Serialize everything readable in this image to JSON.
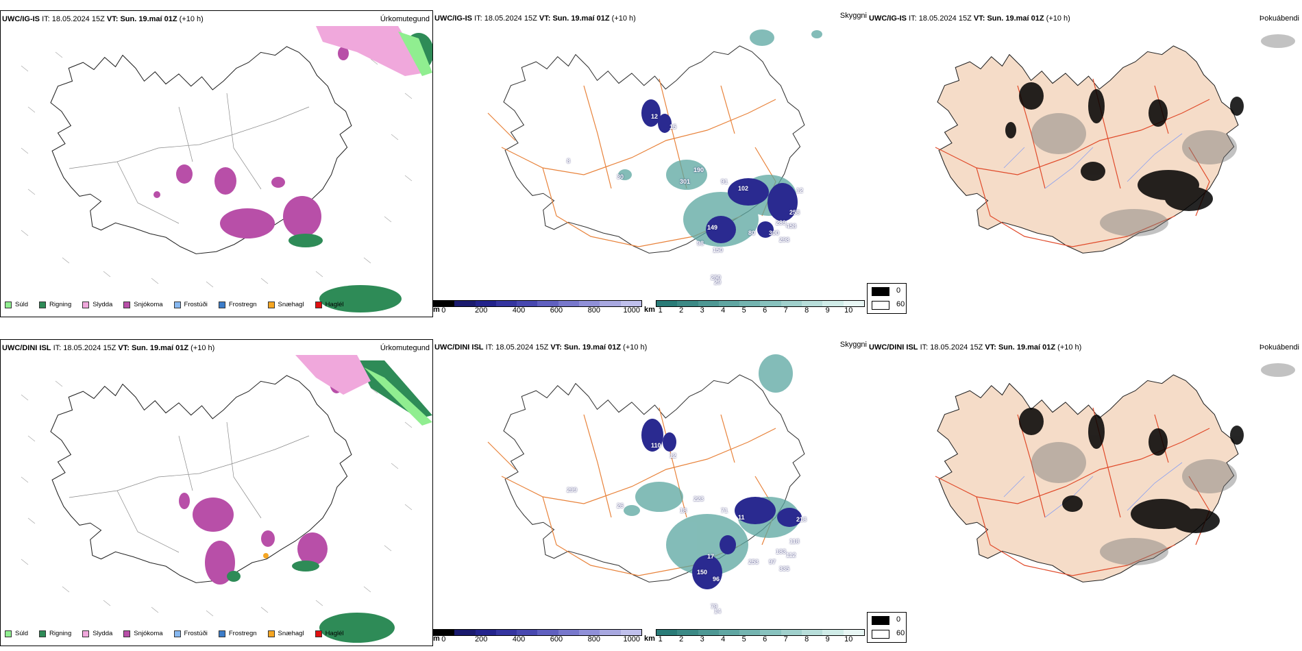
{
  "precip": {
    "title": "Úrkomutegund",
    "legend": [
      {
        "label": "Súld",
        "color": "#90ee90"
      },
      {
        "label": "Rigning",
        "color": "#2e8b57"
      },
      {
        "label": "Slydda",
        "color": "#f0a8dc"
      },
      {
        "label": "Snjókoma",
        "color": "#b84fa8"
      },
      {
        "label": "Frostúði",
        "color": "#87b8f0"
      },
      {
        "label": "Frostregn",
        "color": "#3c7cc8"
      },
      {
        "label": "Snæhagl",
        "color": "#f5a623"
      },
      {
        "label": "Haglél",
        "color": "#e01010"
      }
    ]
  },
  "visibility": {
    "title": "Skyggni",
    "unit_m": "m",
    "unit_km": "km",
    "m_ticks": [
      "0",
      "200",
      "400",
      "600",
      "800",
      "1000"
    ],
    "km_ticks": [
      "1",
      "2",
      "3",
      "4",
      "5",
      "6",
      "7",
      "8",
      "9",
      "10"
    ],
    "m_colors": [
      "#000000",
      "#1a1a6e",
      "#23238c",
      "#3535a0",
      "#4848b0",
      "#6060c0",
      "#7878cc",
      "#9090d8",
      "#a8a8e0",
      "#c0c0ec"
    ],
    "km_colors": [
      "#2a7c78",
      "#3c8a86",
      "#4e9894",
      "#60a6a2",
      "#74b4b0",
      "#88c2be",
      "#a0d0cc",
      "#b8deda",
      "#d0ece8",
      "#e8f6f4"
    ]
  },
  "fog": {
    "title": "Þokuábendi",
    "legend": [
      {
        "label": "0",
        "color": "#000000"
      },
      {
        "label": "60",
        "color": "#ffffff"
      }
    ]
  },
  "rows": [
    {
      "model": "UWC/IG-IS",
      "it_label": "IT:",
      "it_value": "18.05.2024 15Z",
      "vt_label": "VT:",
      "vt_value": "Sun. 19.maí 01Z",
      "lead": "(+10 h)",
      "vis_labels": [
        "12",
        "15",
        "8",
        "30",
        "190",
        "301",
        "91",
        "102",
        "12",
        "258",
        "289",
        "149",
        "300",
        "458",
        "298",
        "98",
        "80",
        "150",
        "250",
        "29"
      ]
    },
    {
      "model": "UWC/DINI ISL",
      "it_label": "IT:",
      "it_value": "18.05.2024 15Z",
      "vt_label": "VT:",
      "vt_value": "Sun. 19.maí 01Z",
      "lead": "(+10 h)",
      "vis_labels": [
        "110",
        "12",
        "299",
        "26",
        "223",
        "18",
        "71",
        "11",
        "218",
        "118",
        "183",
        "17",
        "97",
        "112",
        "335",
        "150",
        "253",
        "96",
        "79",
        "14"
      ]
    }
  ]
}
